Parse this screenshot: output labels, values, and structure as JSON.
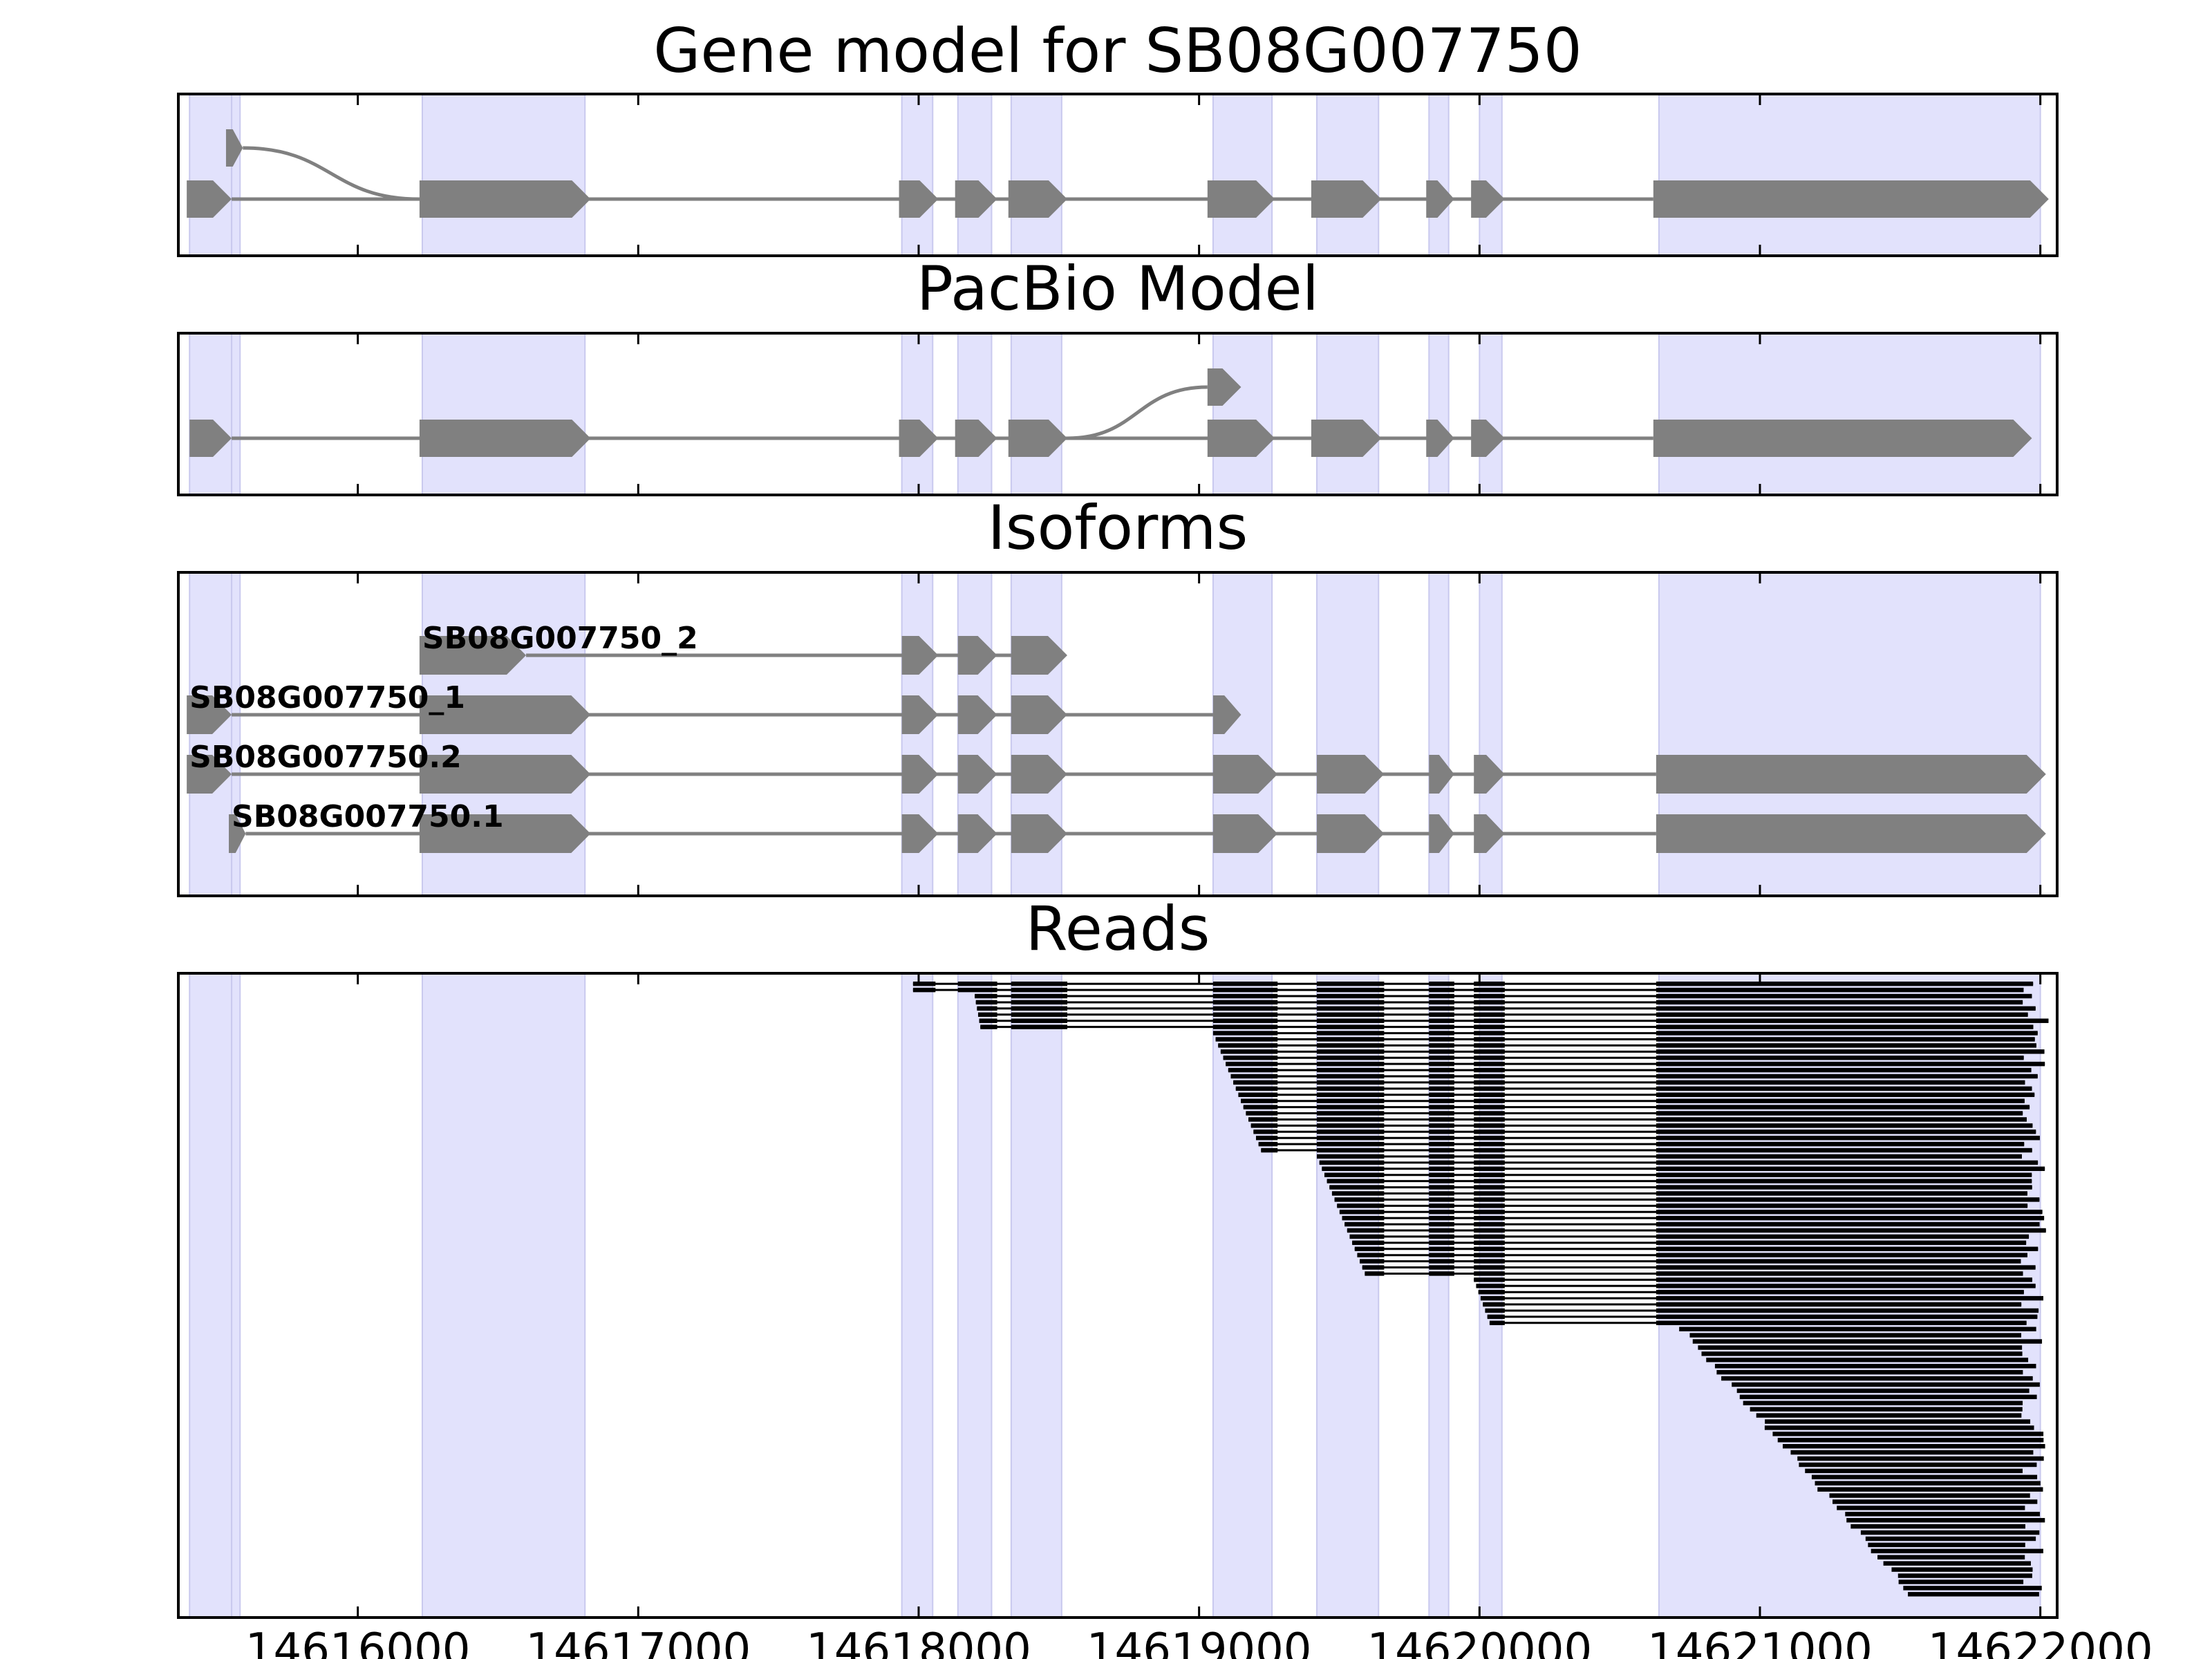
{
  "chart_data": {
    "type": "gene-track",
    "x_ticks": [
      14616000,
      14617000,
      14618000,
      14619000,
      14620000,
      14621000,
      14622000
    ],
    "x_tick_labels": [
      "14616000",
      "14617000",
      "14618000",
      "14619000",
      "14620000",
      "14621000",
      "14622000"
    ],
    "xlim": [
      14615360,
      14622060
    ],
    "colors": {
      "highlight": "#e2e2fc",
      "feature": "#808080",
      "reads": "#000000"
    },
    "highlight_regions": [
      [
        14615400,
        14615550
      ],
      [
        14615550,
        14615580
      ],
      [
        14616230,
        14616810
      ],
      [
        14617940,
        14618050
      ],
      [
        14618140,
        14618260
      ],
      [
        14618330,
        14618510
      ],
      [
        14619050,
        14619260
      ],
      [
        14619420,
        14619640
      ],
      [
        14619820,
        14619890
      ],
      [
        14620000,
        14620080
      ],
      [
        14620640,
        14622000
      ]
    ],
    "panels": [
      {
        "id": "gene-model",
        "title": "Gene model for SB08G007750",
        "transcripts": [
          {
            "exons": [
              [
                14615390,
                14615550
              ],
              [
                14616220,
                14616830
              ],
              [
                14617930,
                14618070
              ],
              [
                14618130,
                14618280
              ],
              [
                14618320,
                14618530
              ],
              [
                14619030,
                14619270
              ],
              [
                14619400,
                14619650
              ],
              [
                14619810,
                14619910
              ],
              [
                14619970,
                14620090
              ],
              [
                14620620,
                14622030
              ]
            ]
          },
          {
            "exons": [
              [
                14615530,
                14615590
              ]
            ],
            "connect_to": 14616220
          }
        ]
      },
      {
        "id": "pacbio-model",
        "title": "PacBio Model",
        "transcripts": [
          {
            "exons": [
              [
                14615400,
                14615550
              ],
              [
                14616220,
                14616830
              ],
              [
                14617930,
                14618070
              ],
              [
                14618130,
                14618280
              ],
              [
                14618320,
                14618530
              ],
              [
                14619030,
                14619270
              ],
              [
                14619400,
                14619650
              ],
              [
                14619810,
                14619910
              ],
              [
                14619970,
                14620090
              ],
              [
                14620620,
                14621970
              ]
            ]
          },
          {
            "exons": [
              [
                14619030,
                14619150
              ]
            ],
            "connect_from": 14618530
          }
        ]
      },
      {
        "id": "isoforms",
        "title": "Isoforms",
        "transcripts": [
          {
            "name": "SB08G007750_2",
            "exons": [
              [
                14616220,
                14616600
              ],
              [
                14617940,
                14618070
              ],
              [
                14618140,
                14618280
              ],
              [
                14618330,
                14618530
              ]
            ]
          },
          {
            "name": "SB08G007750_1",
            "exons": [
              [
                14615390,
                14615550
              ],
              [
                14616220,
                14616830
              ],
              [
                14617940,
                14618070
              ],
              [
                14618140,
                14618280
              ],
              [
                14618330,
                14618530
              ],
              [
                14619050,
                14619150
              ]
            ]
          },
          {
            "name": "SB08G007750.2",
            "exons": [
              [
                14615390,
                14615550
              ],
              [
                14616220,
                14616830
              ],
              [
                14617940,
                14618070
              ],
              [
                14618140,
                14618280
              ],
              [
                14618330,
                14618530
              ],
              [
                14619050,
                14619280
              ],
              [
                14619420,
                14619660
              ],
              [
                14619820,
                14619910
              ],
              [
                14619980,
                14620090
              ],
              [
                14620630,
                14622020
              ]
            ]
          },
          {
            "name": "SB08G007750.1",
            "exons": [
              [
                14615540,
                14615600
              ],
              [
                14616220,
                14616830
              ],
              [
                14617940,
                14618070
              ],
              [
                14618140,
                14618280
              ],
              [
                14618330,
                14618530
              ],
              [
                14619050,
                14619280
              ],
              [
                14619420,
                14619660
              ],
              [
                14619820,
                14619910
              ],
              [
                14619980,
                14620090
              ],
              [
                14620630,
                14622020
              ]
            ]
          }
        ]
      },
      {
        "id": "reads",
        "title": "Reads",
        "read_count": 100
      }
    ]
  }
}
